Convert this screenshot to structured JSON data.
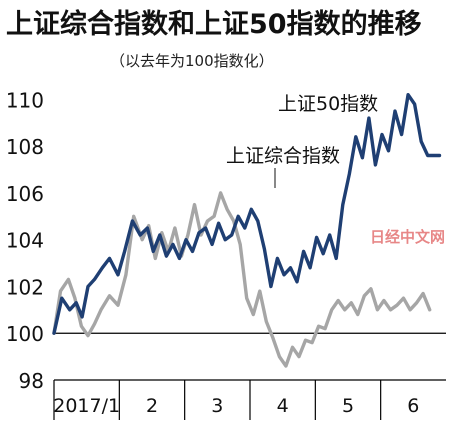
{
  "title": "上证综合指数和上证50指数的推移",
  "subtitle": "（以去年为100指数化）",
  "watermark": "日经中文网",
  "colors": {
    "sse50": "#1f3f73",
    "composite": "#a6a6a6",
    "axis": "#000000",
    "background": "#ffffff"
  },
  "chart_data": {
    "type": "line",
    "title": "上证综合指数和上证50指数的推移",
    "subtitle": "（以去年为100指数化）",
    "ylim": [
      98,
      111
    ],
    "yticks": [
      98,
      100,
      102,
      104,
      106,
      108,
      110
    ],
    "xlim": [
      0,
      6
    ],
    "months": [
      "2017/1",
      "2",
      "3",
      "4",
      "5",
      "6"
    ],
    "grid": false,
    "reference_line": 100,
    "annotations": [
      {
        "text": "上证50指数",
        "series": "sse50"
      },
      {
        "text": "上证综合指数",
        "series": "composite"
      }
    ],
    "series": [
      {
        "name": "上证50指数",
        "key": "sse50",
        "x": [
          0.0,
          0.12,
          0.24,
          0.34,
          0.43,
          0.52,
          0.62,
          0.74,
          0.85,
          0.98,
          1.08,
          1.2,
          1.32,
          1.43,
          1.52,
          1.62,
          1.72,
          1.82,
          1.92,
          2.02,
          2.12,
          2.22,
          2.32,
          2.42,
          2.52,
          2.62,
          2.72,
          2.82,
          2.92,
          3.02,
          3.12,
          3.22,
          3.32,
          3.42,
          3.52,
          3.62,
          3.72,
          3.82,
          3.92,
          4.02,
          4.12,
          4.22,
          4.32,
          4.42,
          4.52,
          4.62,
          4.72,
          4.82,
          4.92,
          5.02,
          5.12,
          5.22,
          5.32,
          5.42,
          5.52,
          5.62,
          5.72,
          5.8,
          5.9
        ],
        "values": [
          100.0,
          101.5,
          101.0,
          101.3,
          100.7,
          102.0,
          102.3,
          102.8,
          103.2,
          102.5,
          103.5,
          104.8,
          104.2,
          104.5,
          103.5,
          104.2,
          103.3,
          103.8,
          103.2,
          104.0,
          103.5,
          104.3,
          104.5,
          103.8,
          104.7,
          104.0,
          104.2,
          105.0,
          104.5,
          105.3,
          104.8,
          103.6,
          102.0,
          103.2,
          102.5,
          102.8,
          102.2,
          103.5,
          102.8,
          104.1,
          103.4,
          104.2,
          103.2,
          105.5,
          106.8,
          108.4,
          107.5,
          109.2,
          107.2,
          108.5,
          107.8,
          109.5,
          108.5,
          110.2,
          109.8,
          108.2,
          107.6,
          107.6,
          107.6
        ]
      },
      {
        "name": "上证综合指数",
        "key": "composite",
        "x": [
          0.0,
          0.1,
          0.22,
          0.32,
          0.42,
          0.52,
          0.62,
          0.72,
          0.85,
          0.98,
          1.1,
          1.22,
          1.35,
          1.45,
          1.55,
          1.65,
          1.75,
          1.85,
          1.95,
          2.05,
          2.15,
          2.25,
          2.35,
          2.45,
          2.55,
          2.65,
          2.75,
          2.85,
          2.95,
          3.05,
          3.15,
          3.25,
          3.35,
          3.45,
          3.55,
          3.65,
          3.75,
          3.85,
          3.95,
          4.05,
          4.15,
          4.25,
          4.35,
          4.45,
          4.55,
          4.65,
          4.75,
          4.85,
          4.95,
          5.05,
          5.15,
          5.25,
          5.35,
          5.45,
          5.55,
          5.65,
          5.75
        ],
        "values": [
          100.0,
          101.8,
          102.3,
          101.5,
          100.3,
          99.9,
          100.4,
          101.0,
          101.6,
          101.2,
          102.5,
          105.0,
          104.0,
          104.6,
          103.2,
          104.3,
          103.5,
          104.5,
          103.3,
          104.2,
          105.5,
          104.2,
          104.8,
          105.0,
          106.0,
          105.3,
          104.8,
          103.8,
          101.5,
          100.8,
          101.8,
          100.5,
          99.8,
          99.0,
          98.6,
          99.4,
          99.0,
          99.7,
          99.6,
          100.3,
          100.2,
          101.0,
          101.4,
          101.0,
          101.3,
          100.8,
          101.6,
          101.9,
          101.0,
          101.4,
          101.0,
          101.2,
          101.5,
          101.0,
          101.3,
          101.7,
          101.0
        ]
      }
    ]
  }
}
